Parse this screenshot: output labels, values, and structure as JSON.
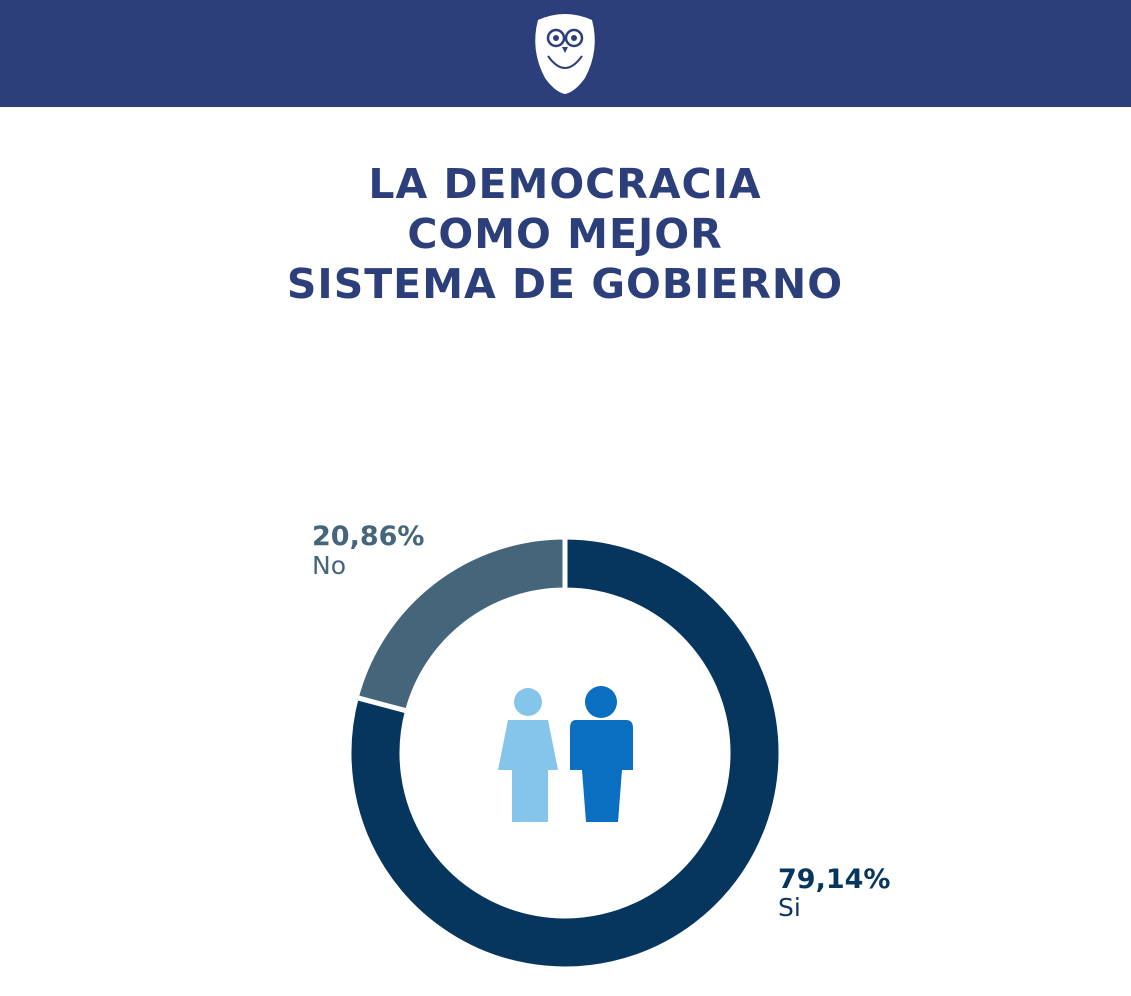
{
  "chart_data": {
    "type": "donut",
    "title": [
      "LA DEMOCRACIA",
      "COMO MEJOR",
      "SISTEMA DE GOBIERNO"
    ],
    "categories": [
      "Si",
      "No"
    ],
    "values": [
      79.14,
      20.86
    ],
    "value_labels": [
      "79,14%",
      "20,86%"
    ],
    "colors": [
      "#06365e",
      "#45657a"
    ]
  }
}
